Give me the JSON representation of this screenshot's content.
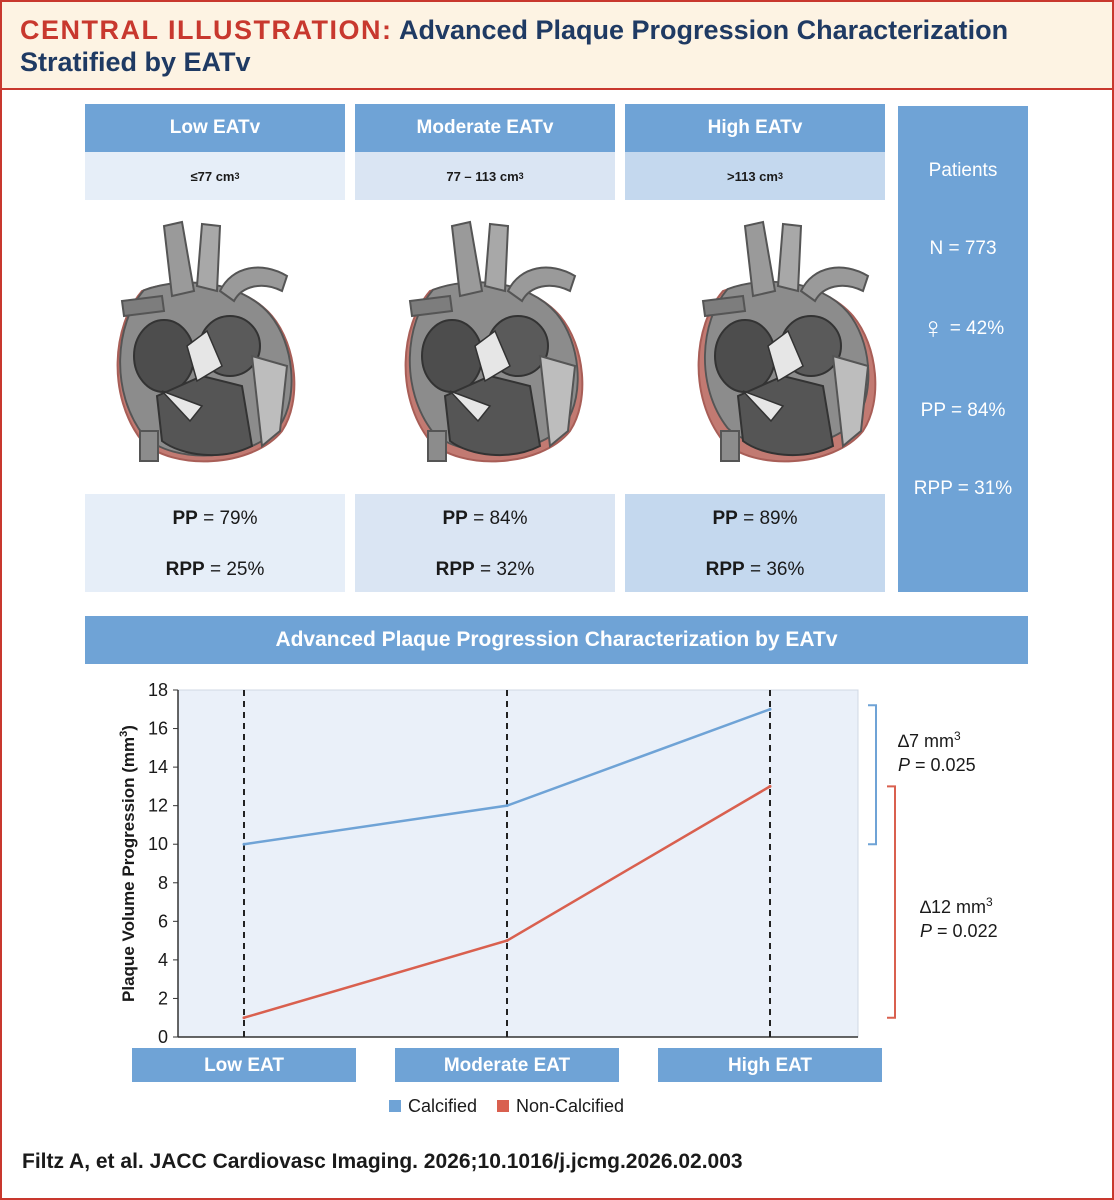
{
  "header": {
    "label": "CENTRAL ILLUSTRATION:",
    "title": "Advanced Plaque Progression Characterization Stratified by EATv"
  },
  "groups": [
    {
      "name": "Low EATv",
      "range": "≤77 cm",
      "unit_sup": "3",
      "pp_label": "PP",
      "pp_value": "= 79%",
      "rpp_label": "RPP",
      "rpp_value": "= 25%",
      "head_color": "#6fa3d6",
      "cell_color": "#e6eef8",
      "fat_level": 1
    },
    {
      "name": "Moderate EATv",
      "range": "77 – 113 cm",
      "unit_sup": "3",
      "pp_label": "PP",
      "pp_value": "= 84%",
      "rpp_label": "RPP",
      "rpp_value": "= 32%",
      "head_color": "#6fa3d6",
      "cell_color": "#dae5f3",
      "fat_level": 2
    },
    {
      "name": "High EATv",
      "range": ">113 cm",
      "unit_sup": "3",
      "pp_label": "PP",
      "pp_value": "= 89%",
      "rpp_label": "RPP",
      "rpp_value": "= 36%",
      "head_color": "#6fa3d6",
      "cell_color": "#c4d8ee",
      "fat_level": 3
    }
  ],
  "patients": {
    "title": "Patients",
    "n": "N = 773",
    "female_symbol": "♀",
    "female": "= 42%",
    "pp": "PP = 84%",
    "rpp": "RPP = 31%"
  },
  "chart_data": {
    "type": "line",
    "title": "Advanced Plaque Progression Characterization by EATv",
    "categories": [
      "Low EAT",
      "Moderate EAT",
      "High EAT"
    ],
    "series": [
      {
        "name": "Calcified",
        "values": [
          10,
          12,
          17
        ],
        "color": "#6fa3d6"
      },
      {
        "name": "Non-Calcified",
        "values": [
          1,
          5,
          13
        ],
        "color": "#d9604f"
      }
    ],
    "ylabel": "Plaque Volume Progression (mm",
    "ylabel_sup": "3",
    "ylabel_close": ")",
    "ylim": [
      0,
      18
    ],
    "yticks": [
      "0",
      "2",
      "4",
      "6",
      "8",
      "10",
      "12",
      "14",
      "16",
      "18"
    ],
    "annotations": [
      {
        "delta": "∆7 mm",
        "sup": "3",
        "p_label": "P",
        "p_value": "= 0.025",
        "color": "#6fa3d6",
        "range": [
          10,
          17
        ]
      },
      {
        "delta": "∆12 mm",
        "sup": "3",
        "p_label": "P",
        "p_value": "= 0.022",
        "color": "#d9604f",
        "range": [
          1,
          13
        ]
      }
    ]
  },
  "footer": "Filtz A, et al. JACC Cardiovasc Imaging. 2026;10.1016/j.jcmg.2026.02.003"
}
